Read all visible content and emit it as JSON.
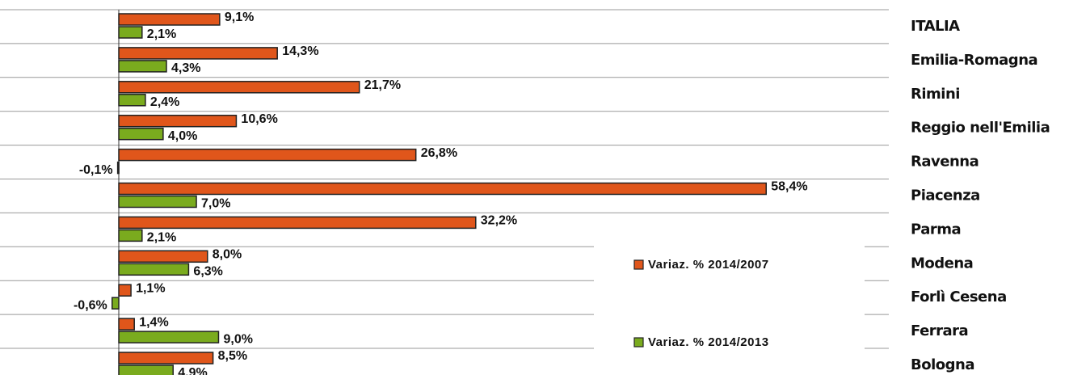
{
  "chart_data": {
    "type": "hbar",
    "categories": [
      "ITALIA",
      "Emilia-Romagna",
      "Rimini",
      "Reggio nell'Emilia",
      "Ravenna",
      "Piacenza",
      "Parma",
      "Modena",
      "Forlì Cesena",
      "Ferrara",
      "Bologna"
    ],
    "series": [
      {
        "name": "Variaz. % 2014/2007",
        "color": "#e0561b",
        "values": [
          9.1,
          14.3,
          21.7,
          10.6,
          26.8,
          58.4,
          32.2,
          8.0,
          1.1,
          1.4,
          8.5
        ],
        "value_labels": [
          "9,1%",
          "14,3%",
          "21,7%",
          "10,6%",
          "26,8%",
          "58,4%",
          "32,2%",
          "8,0%",
          "1,1%",
          "1,4%",
          "8,5%"
        ]
      },
      {
        "name": "Variaz. % 2014/2013",
        "color": "#7aab1e",
        "values": [
          2.1,
          4.3,
          2.4,
          4.0,
          -0.1,
          7.0,
          2.1,
          6.3,
          -0.6,
          9.0,
          4.9
        ],
        "value_labels": [
          "2,1%",
          "4,3%",
          "2,4%",
          "4,0%",
          "-0,1%",
          "7,0%",
          "2,1%",
          "6,3%",
          "-0,6%",
          "9,0%",
          "4,9%"
        ]
      }
    ]
  }
}
